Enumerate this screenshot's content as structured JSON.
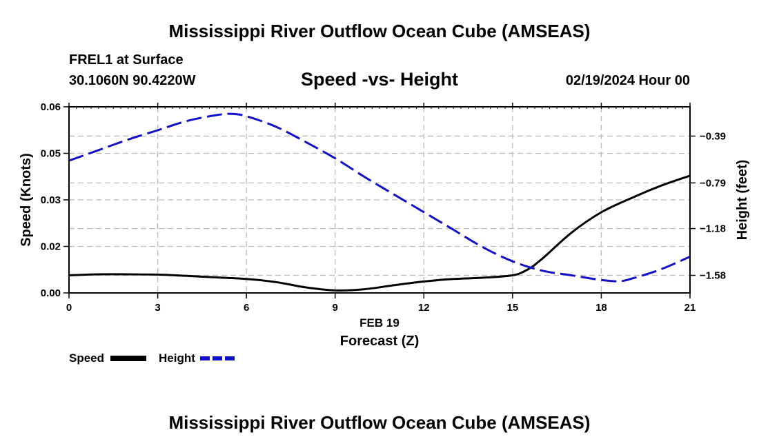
{
  "header": {
    "title": "Mississippi River Outflow Ocean Cube (AMSEAS)",
    "station": "FREL1 at Surface",
    "coords": "30.1060N  90.4220W",
    "subtitle": "Speed -vs- Height",
    "datetime": "02/19/2024 Hour 00"
  },
  "footer": {
    "title": "Mississippi River Outflow Ocean Cube (AMSEAS)"
  },
  "chart_data": {
    "type": "line",
    "title": "Speed -vs- Height",
    "xlabel_date": "FEB 19",
    "xlabel": "Forecast (Z)",
    "ylabel_left": "Speed (Knots)",
    "ylabel_right": "Height (feet)",
    "xlim": [
      0,
      21
    ],
    "ylim_left": [
      0,
      0.06
    ],
    "ylim_right": [
      -1.73,
      -0.14
    ],
    "grid": true,
    "x_ticks": [
      0,
      3,
      6,
      9,
      12,
      15,
      18,
      21
    ],
    "x_tick_labels": [
      "0",
      "3",
      "6",
      "9",
      "12",
      "15",
      "18",
      "21"
    ],
    "y_left_ticks": [
      0,
      0.015,
      0.03,
      0.045,
      0.06
    ],
    "y_left_tick_labels": [
      "0.00",
      "0.02",
      "0.03",
      "0.05",
      "0.06"
    ],
    "y_right_ticks": [
      -0.39,
      -0.79,
      -1.18,
      -1.58
    ],
    "y_right_tick_labels": [
      "-0.39",
      "-0.79",
      "-1.18",
      "-1.58"
    ],
    "series": [
      {
        "name": "Speed",
        "axis": "left",
        "color": "#000000",
        "style": "solid",
        "x": [
          0,
          1,
          2,
          3,
          4,
          5,
          6,
          7,
          8,
          9,
          10,
          11,
          12,
          13,
          14,
          15,
          15.5,
          16,
          17,
          18,
          19,
          20,
          21
        ],
        "values": [
          0.0057,
          0.006,
          0.006,
          0.0059,
          0.0055,
          0.005,
          0.0045,
          0.0035,
          0.0018,
          0.0008,
          0.0012,
          0.0025,
          0.0037,
          0.0045,
          0.0049,
          0.0057,
          0.0075,
          0.011,
          0.0195,
          0.026,
          0.0305,
          0.0345,
          0.0378
        ]
      },
      {
        "name": "Height",
        "axis": "right",
        "color": "#1010cc",
        "style": "dashed",
        "x": [
          0,
          1,
          2,
          3,
          4,
          5,
          5.5,
          6,
          7,
          8,
          9,
          10,
          11,
          12,
          13,
          14,
          15,
          16,
          17,
          18,
          18.6,
          19,
          20,
          21
        ],
        "values": [
          -0.6,
          -0.51,
          -0.42,
          -0.34,
          -0.26,
          -0.21,
          -0.2,
          -0.22,
          -0.31,
          -0.44,
          -0.58,
          -0.74,
          -0.89,
          -1.04,
          -1.19,
          -1.34,
          -1.46,
          -1.54,
          -1.58,
          -1.62,
          -1.63,
          -1.61,
          -1.53,
          -1.42
        ]
      }
    ]
  }
}
